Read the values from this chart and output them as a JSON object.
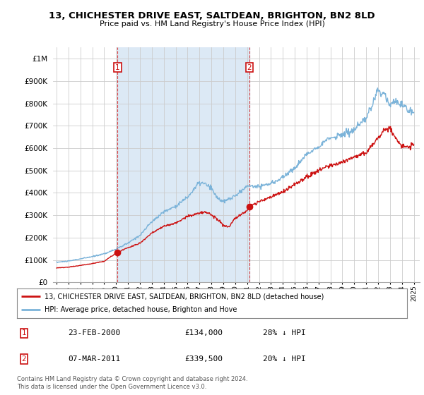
{
  "title": "13, CHICHESTER DRIVE EAST, SALTDEAN, BRIGHTON, BN2 8LD",
  "subtitle": "Price paid vs. HM Land Registry's House Price Index (HPI)",
  "ylabel_ticks": [
    "£0",
    "£100K",
    "£200K",
    "£300K",
    "£400K",
    "£500K",
    "£600K",
    "£700K",
    "£800K",
    "£900K",
    "£1M"
  ],
  "ytick_values": [
    0,
    100000,
    200000,
    300000,
    400000,
    500000,
    600000,
    700000,
    800000,
    900000,
    1000000
  ],
  "ylim": [
    0,
    1050000
  ],
  "xlim_start": 1994.7,
  "xlim_end": 2025.5,
  "hpi_color": "#7bb3d9",
  "hpi_fill_color": "#dce9f5",
  "price_color": "#cc1111",
  "sale1_x": 2000.12,
  "sale1_y": 134000,
  "sale1_label": "1",
  "sale1_date": "23-FEB-2000",
  "sale1_price": "£134,000",
  "sale1_note": "28% ↓ HPI",
  "sale2_x": 2011.18,
  "sale2_y": 339500,
  "sale2_label": "2",
  "sale2_date": "07-MAR-2011",
  "sale2_price": "£339,500",
  "sale2_note": "20% ↓ HPI",
  "vline1_x": 2000.12,
  "vline2_x": 2011.18,
  "legend_line1": "13, CHICHESTER DRIVE EAST, SALTDEAN, BRIGHTON, BN2 8LD (detached house)",
  "legend_line2": "HPI: Average price, detached house, Brighton and Hove",
  "footer": "Contains HM Land Registry data © Crown copyright and database right 2024.\nThis data is licensed under the Open Government Licence v3.0.",
  "background_color": "#ffffff",
  "grid_color": "#cccccc"
}
